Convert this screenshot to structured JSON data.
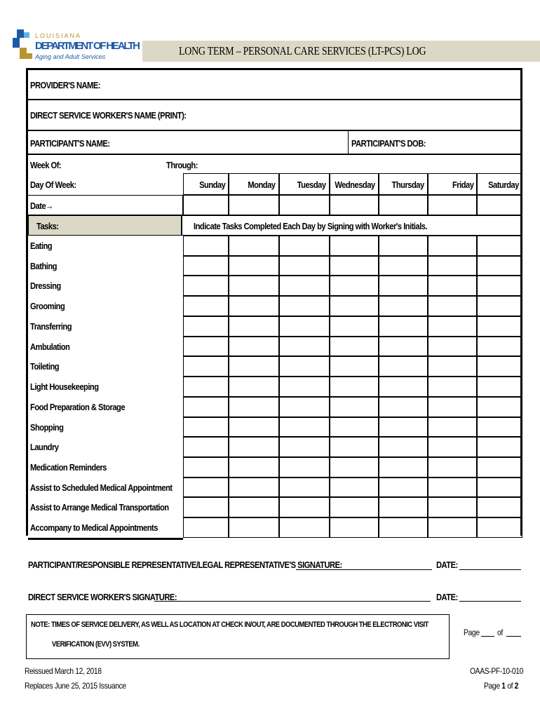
{
  "header": {
    "logo": {
      "state": "LOUISIANA",
      "department": "DEPARTMENT OF HEALTH",
      "office": "Aging and Adult Services",
      "colors": {
        "blue": "#1f5aa6",
        "gold": "#b8952e",
        "lightblue": "#5fb3e0"
      }
    },
    "title": "LONG TERM – PERSONAL CARE SERVICES (LT-PCS) LOG"
  },
  "form": {
    "provider_name": "PROVIDER'S NAME:",
    "dsw_name": "DIRECT SERVICE WORKER'S NAME (PRINT):",
    "participant_name": "PARTICIPANT'S NAME:",
    "participant_dob": "PARTICIPANT'S DOB:",
    "week_of": "Week Of:",
    "through": "Through:",
    "day_of_week": "Day Of Week:",
    "days": [
      "Sunday",
      "Monday",
      "Tuesday",
      "Wednesday",
      "Thursday",
      "Friday",
      "Saturday"
    ],
    "date_label": "Date→",
    "tasks_label": "Tasks:",
    "tasks_instruction": "Indicate Tasks Completed Each Day by Signing with Worker's Initials.",
    "tasks": [
      "Eating",
      "Bathing",
      "Dressing",
      "Grooming",
      "Transferring",
      "Ambulation",
      "Toileting",
      "Light Housekeeping",
      "Food Preparation & Storage",
      "Shopping",
      "Laundry",
      "Medication Reminders",
      "Assist to Scheduled Medical Appointment",
      "Assist to Arrange Medical Transportation",
      "Accompany to Medical Appointments"
    ]
  },
  "signatures": {
    "participant_sig": "PARTICIPANT/RESPONSIBLE REPRESENTATIVE/LEGAL REPRESENTATIVE'S SIGNATURE:",
    "dsw_sig": "DIRECT SERVICE WORKER'S SIGNATURE:",
    "date": "DATE:"
  },
  "note": {
    "line1": "NOTE: TIMES OF SERVICE DELIVERY, AS WELL AS LOCATION AT CHECK IN/OUT, ARE DOCUMENTED THROUGH THE ELECTRONIC VISIT",
    "line2": "VERIFICATION (EVV) SYSTEM."
  },
  "page_blank": {
    "page": "Page",
    "of": "of"
  },
  "footer": {
    "reissued": "Reissued March 12, 2018",
    "replaces": "Replaces June 25, 2015 Issuance",
    "form_id": "OAAS-PF-10-010",
    "page_label": "Page",
    "page_num": "1",
    "of": "of",
    "page_total": "2"
  }
}
